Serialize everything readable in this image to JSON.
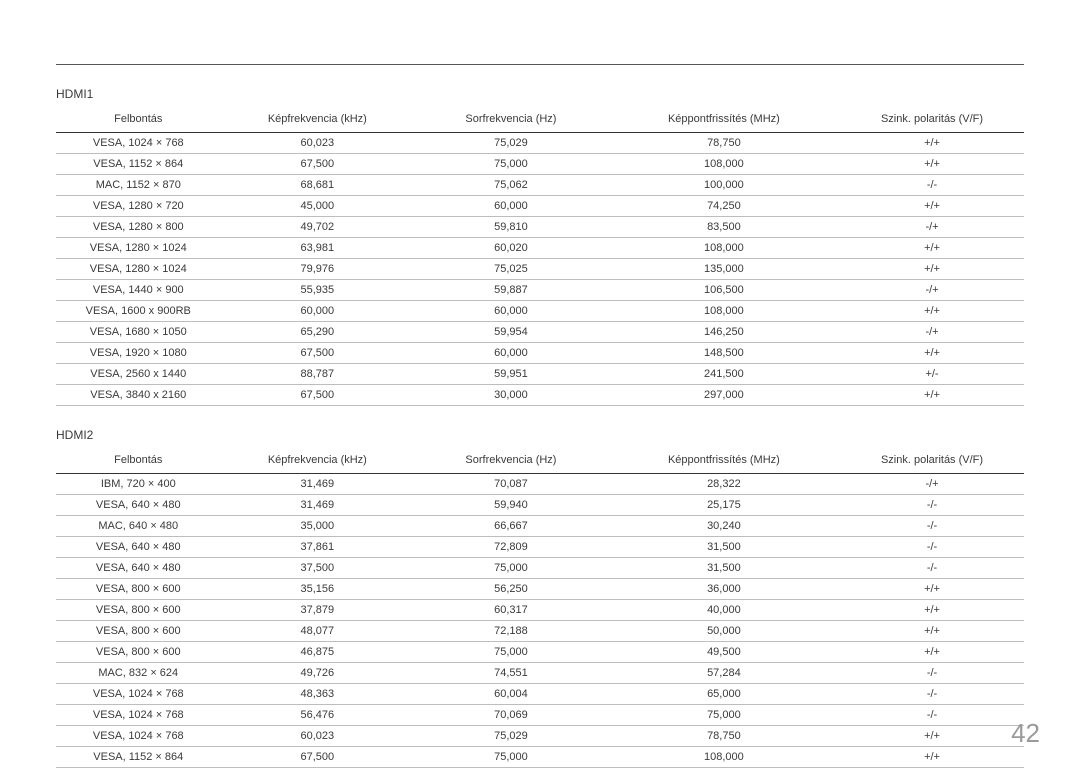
{
  "page_number": "42",
  "columns": {
    "c0": "Felbontás",
    "c1": "Képfrekvencia (kHz)",
    "c2": "Sorfrekvencia (Hz)",
    "c3": "Képpontfrissítés (MHz)",
    "c4": "Szink. polaritás (V/F)"
  },
  "sections": [
    {
      "title": "HDMI1",
      "rows": [
        [
          "VESA, 1024 × 768",
          "60,023",
          "75,029",
          "78,750",
          "+/+"
        ],
        [
          "VESA, 1152 × 864",
          "67,500",
          "75,000",
          "108,000",
          "+/+"
        ],
        [
          "MAC, 1152 × 870",
          "68,681",
          "75,062",
          "100,000",
          "-/-"
        ],
        [
          "VESA, 1280 × 720",
          "45,000",
          "60,000",
          "74,250",
          "+/+"
        ],
        [
          "VESA, 1280 × 800",
          "49,702",
          "59,810",
          "83,500",
          "-/+"
        ],
        [
          "VESA, 1280 × 1024",
          "63,981",
          "60,020",
          "108,000",
          "+/+"
        ],
        [
          "VESA, 1280 × 1024",
          "79,976",
          "75,025",
          "135,000",
          "+/+"
        ],
        [
          "VESA, 1440 × 900",
          "55,935",
          "59,887",
          "106,500",
          "-/+"
        ],
        [
          "VESA, 1600 x 900RB",
          "60,000",
          "60,000",
          "108,000",
          "+/+"
        ],
        [
          "VESA, 1680 × 1050",
          "65,290",
          "59,954",
          "146,250",
          "-/+"
        ],
        [
          "VESA, 1920 × 1080",
          "67,500",
          "60,000",
          "148,500",
          "+/+"
        ],
        [
          "VESA, 2560 x 1440",
          "88,787",
          "59,951",
          "241,500",
          "+/-"
        ],
        [
          "VESA, 3840 x 2160",
          "67,500",
          "30,000",
          "297,000",
          "+/+"
        ]
      ]
    },
    {
      "title": "HDMI2",
      "rows": [
        [
          "IBM, 720 × 400",
          "31,469",
          "70,087",
          "28,322",
          "-/+"
        ],
        [
          "VESA, 640 × 480",
          "31,469",
          "59,940",
          "25,175",
          "-/-"
        ],
        [
          "MAC, 640 × 480",
          "35,000",
          "66,667",
          "30,240",
          "-/-"
        ],
        [
          "VESA, 640 × 480",
          "37,861",
          "72,809",
          "31,500",
          "-/-"
        ],
        [
          "VESA, 640 × 480",
          "37,500",
          "75,000",
          "31,500",
          "-/-"
        ],
        [
          "VESA, 800 × 600",
          "35,156",
          "56,250",
          "36,000",
          "+/+"
        ],
        [
          "VESA, 800 × 600",
          "37,879",
          "60,317",
          "40,000",
          "+/+"
        ],
        [
          "VESA, 800 × 600",
          "48,077",
          "72,188",
          "50,000",
          "+/+"
        ],
        [
          "VESA, 800 × 600",
          "46,875",
          "75,000",
          "49,500",
          "+/+"
        ],
        [
          "MAC, 832 × 624",
          "49,726",
          "74,551",
          "57,284",
          "-/-"
        ],
        [
          "VESA, 1024 × 768",
          "48,363",
          "60,004",
          "65,000",
          "-/-"
        ],
        [
          "VESA, 1024 × 768",
          "56,476",
          "70,069",
          "75,000",
          "-/-"
        ],
        [
          "VESA, 1024 × 768",
          "60,023",
          "75,029",
          "78,750",
          "+/+"
        ],
        [
          "VESA, 1152 × 864",
          "67,500",
          "75,000",
          "108,000",
          "+/+"
        ]
      ]
    }
  ]
}
